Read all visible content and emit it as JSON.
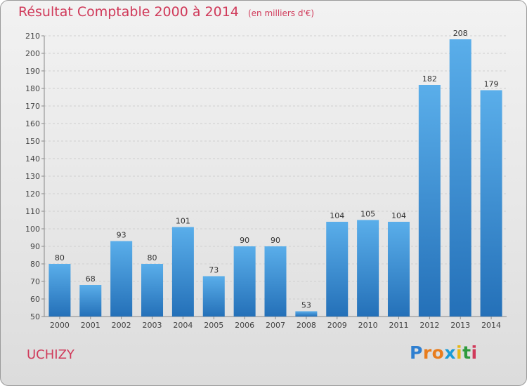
{
  "title": "Résultat Comptable 2000 à 2014",
  "subtitle": "(en milliers d'€)",
  "commune": "UCHIZY",
  "logo": {
    "letters": [
      "P",
      "r",
      "o",
      "x",
      "i",
      "t",
      "i"
    ],
    "colors": [
      "#2f7fd0",
      "#e87d1e",
      "#e87d1e",
      "#1a9bd7",
      "#e5b715",
      "#2e9a3c",
      "#d03a5a"
    ]
  },
  "colors": {
    "bar": "#3d93d6",
    "bar_light": "#5aaeea",
    "bar_dark": "#2470b8",
    "title": "#d03a5a"
  },
  "chart_data": {
    "type": "bar",
    "categories": [
      "2000",
      "2001",
      "2002",
      "2003",
      "2004",
      "2005",
      "2006",
      "2007",
      "2008",
      "2009",
      "2010",
      "2011",
      "2012",
      "2013",
      "2014"
    ],
    "values": [
      80,
      68,
      93,
      80,
      101,
      73,
      90,
      90,
      53,
      104,
      105,
      104,
      182,
      208,
      179
    ],
    "ylim": [
      50,
      210
    ],
    "yticks": [
      50,
      60,
      70,
      80,
      90,
      100,
      110,
      120,
      130,
      140,
      150,
      160,
      170,
      180,
      190,
      200,
      210
    ],
    "grid": true
  }
}
